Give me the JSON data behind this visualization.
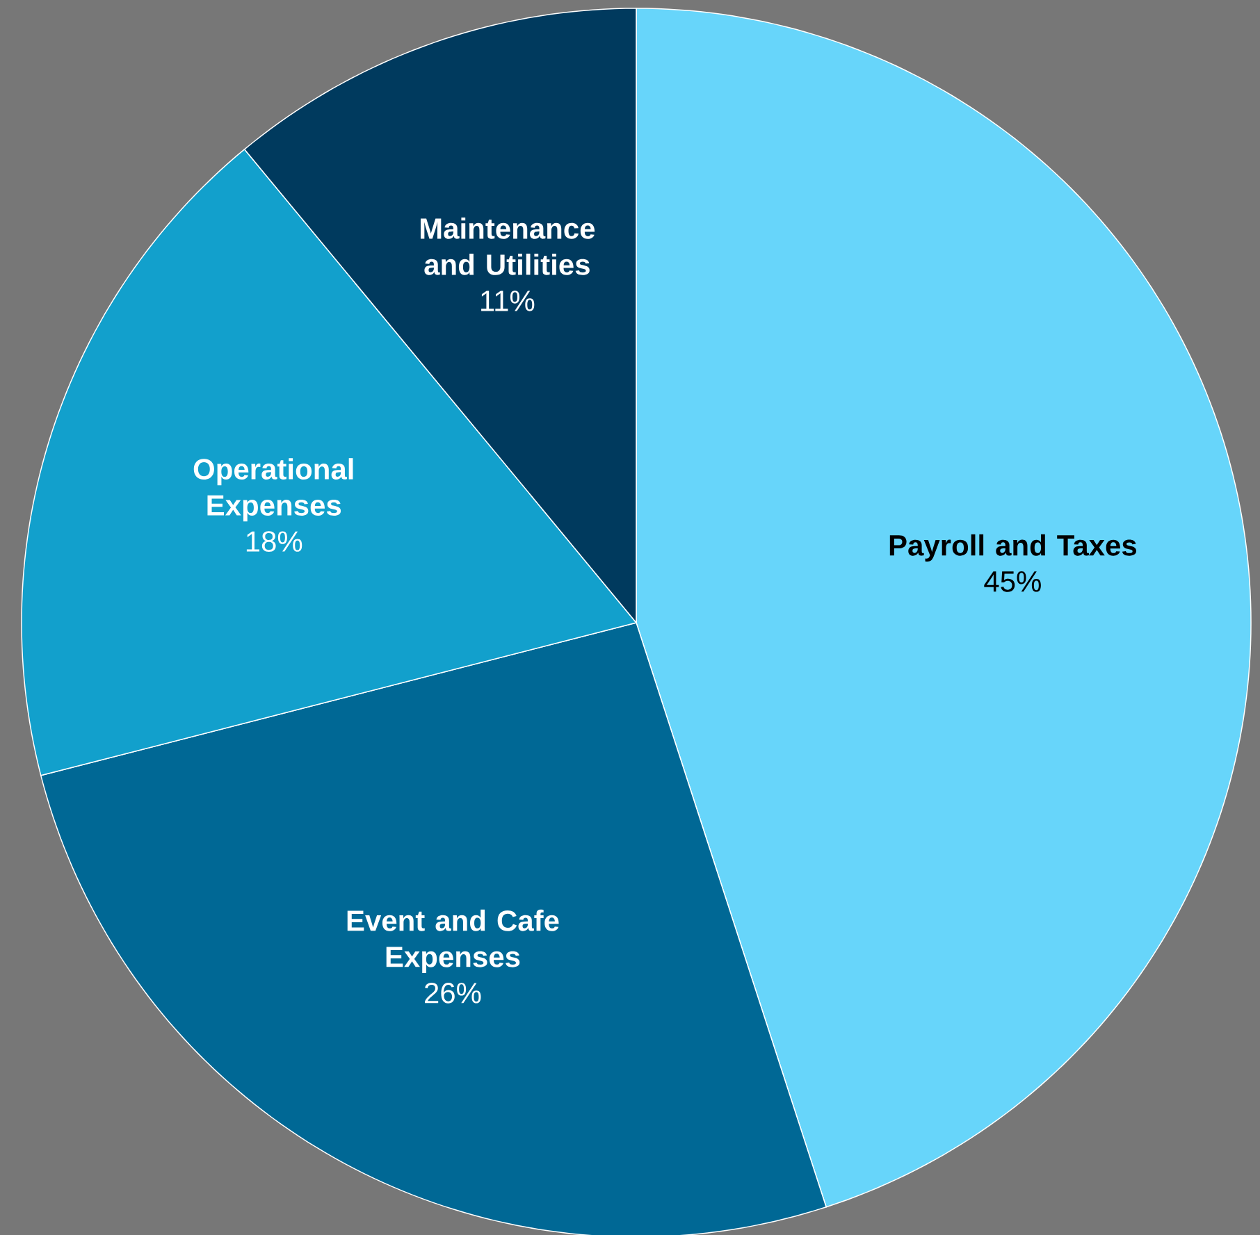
{
  "chart_data": {
    "type": "pie",
    "categories": [
      "Payroll and Taxes",
      "Event and Cafe Expenses",
      "Operational Expenses",
      "Maintenance and Utilities"
    ],
    "values": [
      45,
      26,
      18,
      11
    ],
    "value_labels": [
      "45%",
      "26%",
      "18%",
      "11%"
    ],
    "colors": [
      "#67d5fa",
      "#006895",
      "#12a0cc",
      "#003a5e"
    ]
  }
}
